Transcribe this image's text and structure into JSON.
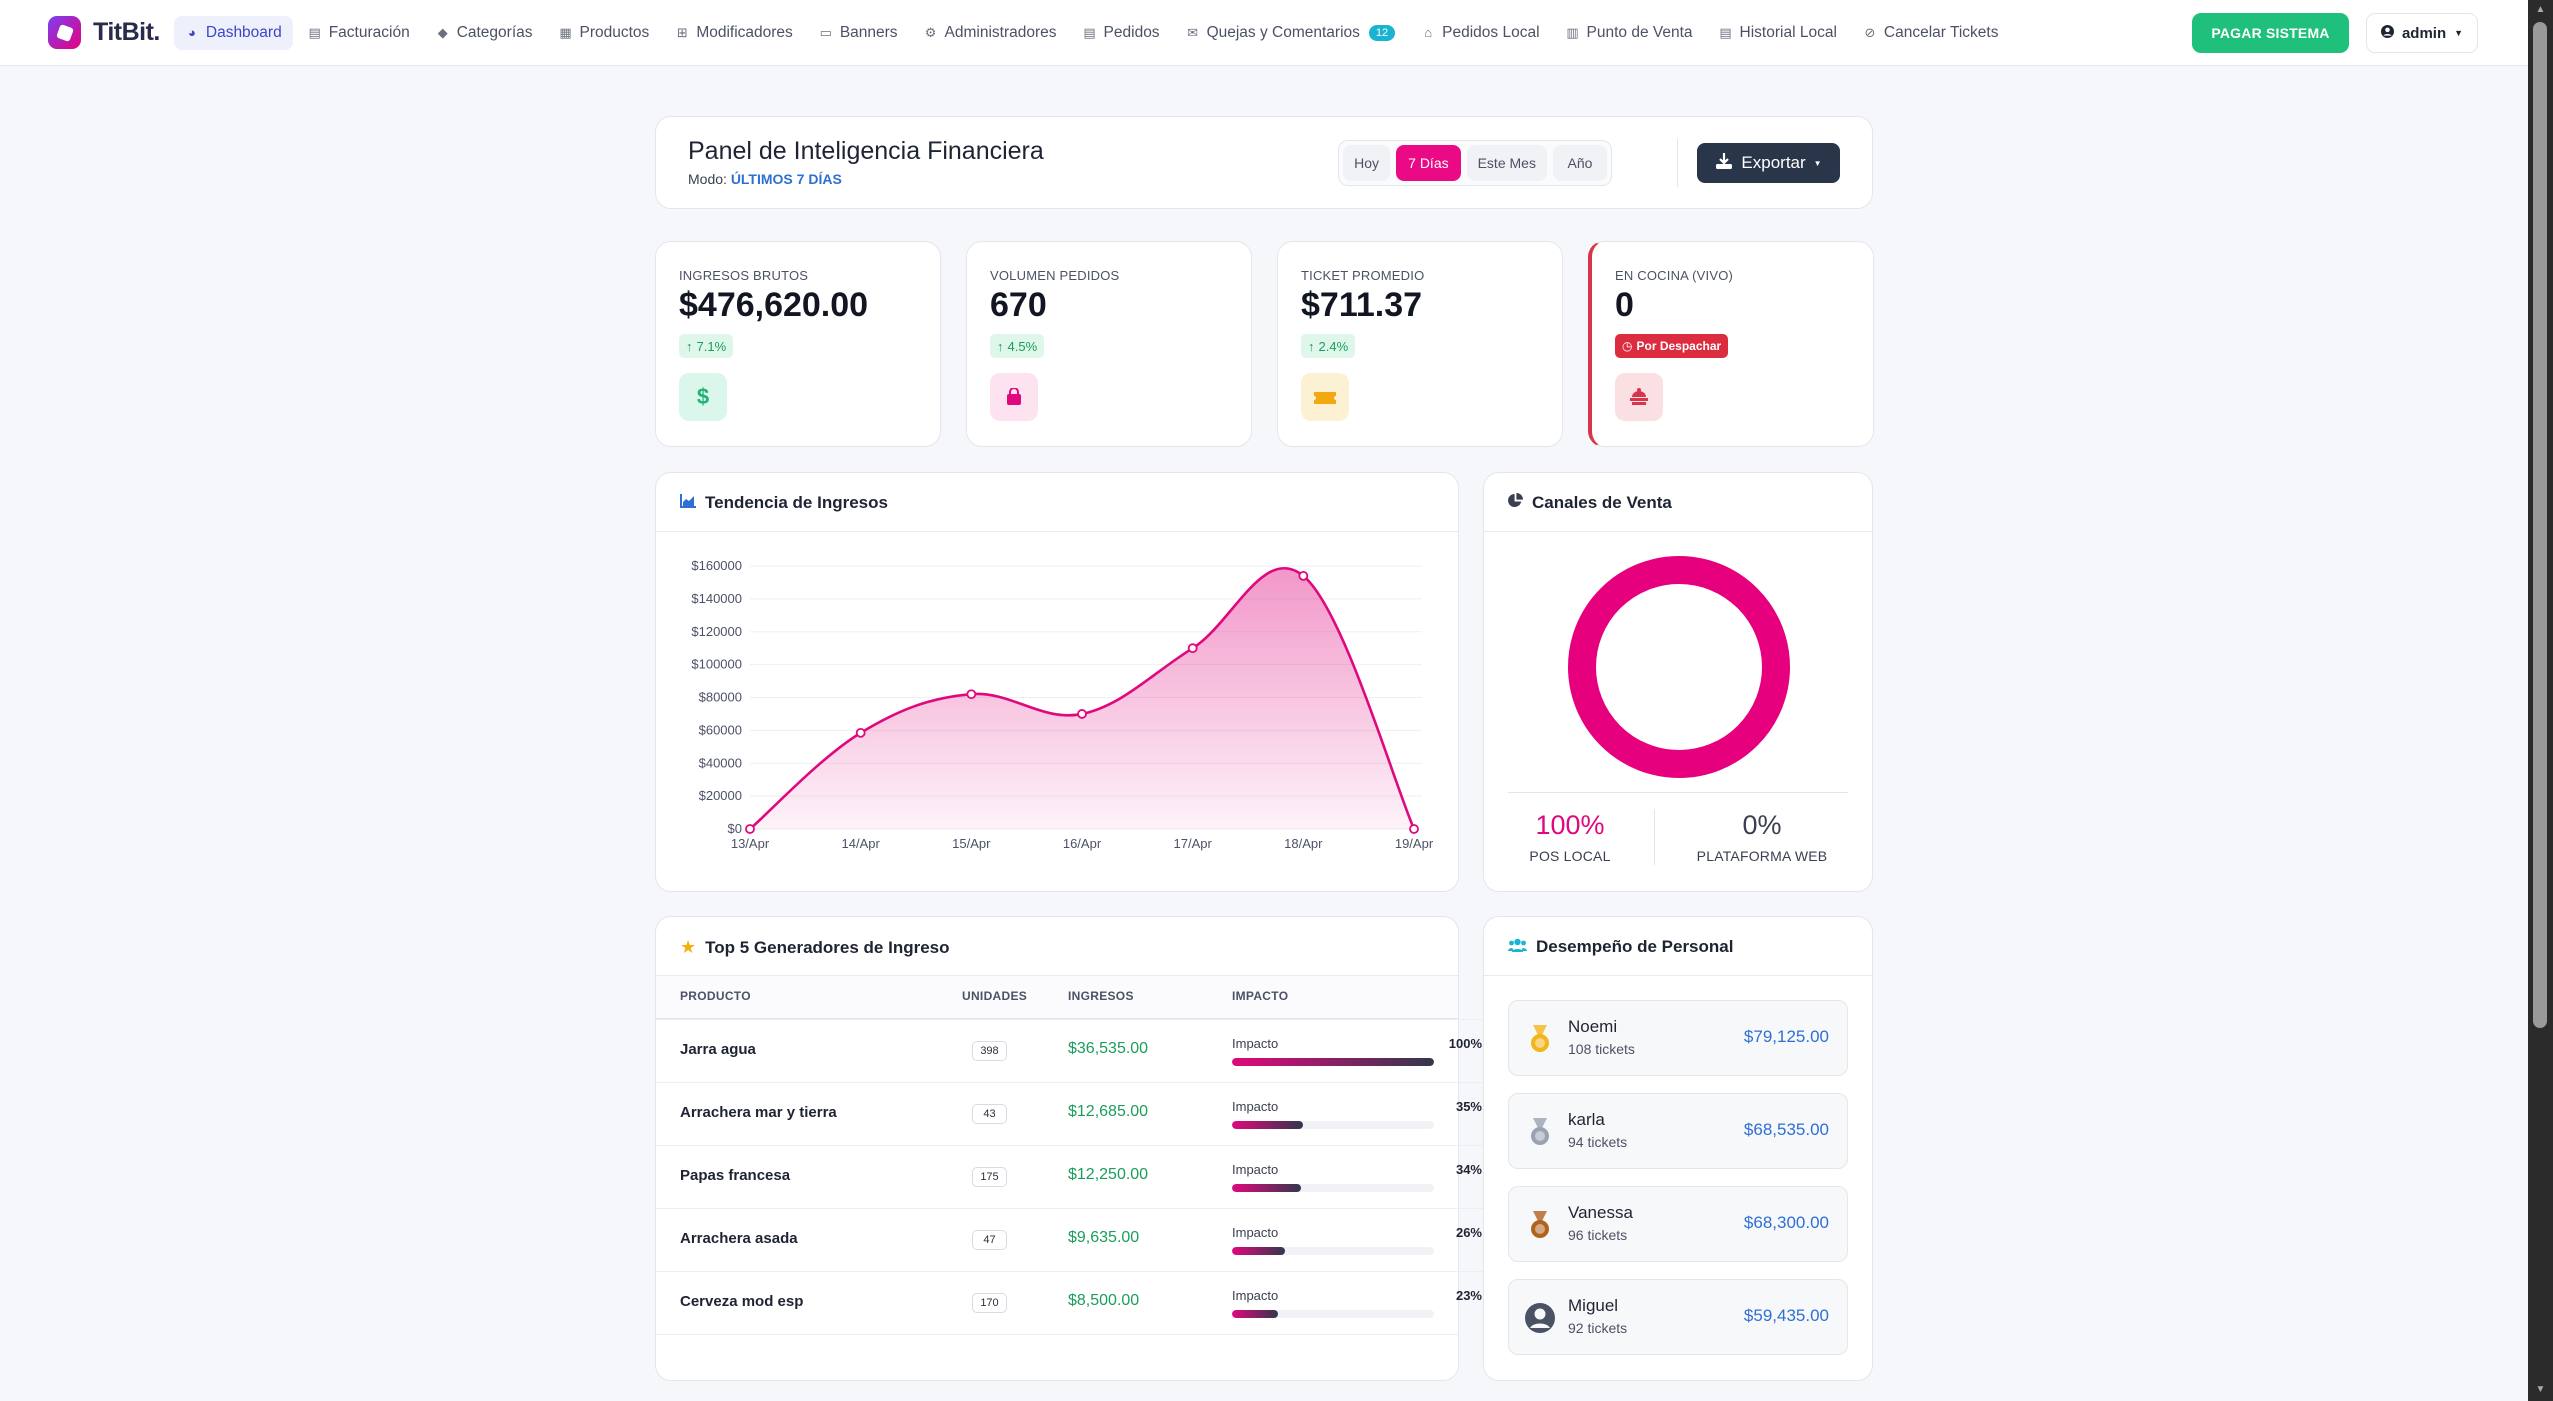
{
  "brand": {
    "name": "TitBit."
  },
  "nav": [
    {
      "label": "Dashboard",
      "icon": "chart-pie-icon"
    },
    {
      "label": "Facturación",
      "icon": "file-icon"
    },
    {
      "label": "Categorías",
      "icon": "tags-icon"
    },
    {
      "label": "Productos",
      "icon": "box-icon"
    },
    {
      "label": "Modificadores",
      "icon": "plus-square-icon"
    },
    {
      "label": "Banners",
      "icon": "images-icon"
    },
    {
      "label": "Administradores",
      "icon": "users-cog-icon"
    },
    {
      "label": "Pedidos",
      "icon": "receipt-icon"
    },
    {
      "label": "Quejas y Comentarios",
      "icon": "comments-icon",
      "badge": "12"
    },
    {
      "label": "Pedidos Local",
      "icon": "store-icon"
    },
    {
      "label": "Punto de Venta",
      "icon": "cash-register-icon"
    },
    {
      "label": "Historial Local",
      "icon": "history-icon"
    },
    {
      "label": "Cancelar Tickets",
      "icon": "ban-icon"
    }
  ],
  "actions": {
    "pay": "PAGAR SISTEMA",
    "user": "admin"
  },
  "header": {
    "title": "Panel de Inteligencia Financiera",
    "mode_label": "Modo:",
    "mode_value": "ÚLTIMOS 7 DÍAS",
    "ranges": [
      "Hoy",
      "7 Días",
      "Este Mes",
      "Año"
    ],
    "active_range": "7 Días",
    "export": "Exportar"
  },
  "kpis": [
    {
      "label": "INGRESOS BRUTOS",
      "value": "$476,620.00",
      "trend": "7.1%",
      "icon": "dollar-icon",
      "icon_color": "#1fb372",
      "icon_bg": "#dbf6ea"
    },
    {
      "label": "VOLUMEN PEDIDOS",
      "value": "670",
      "trend": "4.5%",
      "icon": "shopping-bag-icon",
      "icon_color": "#e0087e",
      "icon_bg": "#fde2f0"
    },
    {
      "label": "TICKET PROMEDIO",
      "value": "$711.37",
      "trend": "2.4%",
      "icon": "ticket-icon",
      "icon_color": "#f3a711",
      "icon_bg": "#fdf1d4"
    },
    {
      "label": "EN COCINA (VIVO)",
      "value": "0",
      "trend": "Por Despachar",
      "icon": "chef-icon",
      "icon_color": "#d7364a",
      "icon_bg": "#fbe0e3"
    }
  ],
  "revenue_chart": {
    "title": "Tendencia de Ingresos",
    "chart_data": {
      "type": "area",
      "categories": [
        "13/Apr",
        "14/Apr",
        "15/Apr",
        "16/Apr",
        "17/Apr",
        "18/Apr",
        "19/Apr"
      ],
      "series": [
        {
          "values": [
            0,
            58500,
            82000,
            70000,
            110000,
            154000,
            0
          ]
        }
      ],
      "ylim": [
        0,
        160000
      ],
      "yticks": [
        "$160000",
        "$140000",
        "$120000",
        "$100000",
        "$80000",
        "$60000",
        "$40000",
        "$20000",
        "$0"
      ],
      "color": "#e0087e",
      "grid": true
    }
  },
  "channels": {
    "title": "Canales de Venta",
    "chart_data": {
      "type": "pie",
      "labels": [
        "POS LOCAL",
        "PLATAFORMA WEB"
      ],
      "values": [
        100,
        0
      ],
      "colors": [
        "#e6007e",
        "#3b3f4f"
      ]
    },
    "items": [
      {
        "pct": "100%",
        "label": "POS LOCAL",
        "color": "#e0087e"
      },
      {
        "pct": "0%",
        "label": "PLATAFORMA WEB",
        "color": "#3b3f4f"
      }
    ]
  },
  "top_products": {
    "title": "Top 5 Generadores de Ingreso",
    "headers": [
      "PRODUCTO",
      "UNIDADES",
      "INGRESOS",
      "IMPACTO"
    ],
    "impact_label": "Impacto",
    "rows": [
      {
        "product": "Jarra agua",
        "units": "398",
        "revenue": "$36,535.00",
        "impact": "100%",
        "impact_value": 1.0
      },
      {
        "product": "Arrachera mar y tierra",
        "units": "43",
        "revenue": "$12,685.00",
        "impact": "35%",
        "impact_value": 0.35
      },
      {
        "product": "Papas francesa",
        "units": "175",
        "revenue": "$12,250.00",
        "impact": "34%",
        "impact_value": 0.34
      },
      {
        "product": "Arrachera asada",
        "units": "47",
        "revenue": "$9,635.00",
        "impact": "26%",
        "impact_value": 0.26
      },
      {
        "product": "Cerveza mod esp",
        "units": "170",
        "revenue": "$8,500.00",
        "impact": "23%",
        "impact_value": 0.23
      }
    ]
  },
  "staff": {
    "title": "Desempeño de Personal",
    "members": [
      {
        "name": "Noemi",
        "tickets": "108 tickets",
        "amount": "$79,125.00",
        "medal": "gold-medal-icon",
        "medal_color": "#f2b51c"
      },
      {
        "name": "karla",
        "tickets": "94 tickets",
        "amount": "$68,535.00",
        "medal": "silver-medal-icon",
        "medal_color": "#9aa3b2"
      },
      {
        "name": "Vanessa",
        "tickets": "96 tickets",
        "amount": "$68,300.00",
        "medal": "bronze-medal-icon",
        "medal_color": "#b0621f"
      },
      {
        "name": "Miguel",
        "tickets": "92 tickets",
        "amount": "$59,435.00",
        "medal": "user-circle-icon",
        "medal_color": "#4c5265"
      }
    ]
  }
}
